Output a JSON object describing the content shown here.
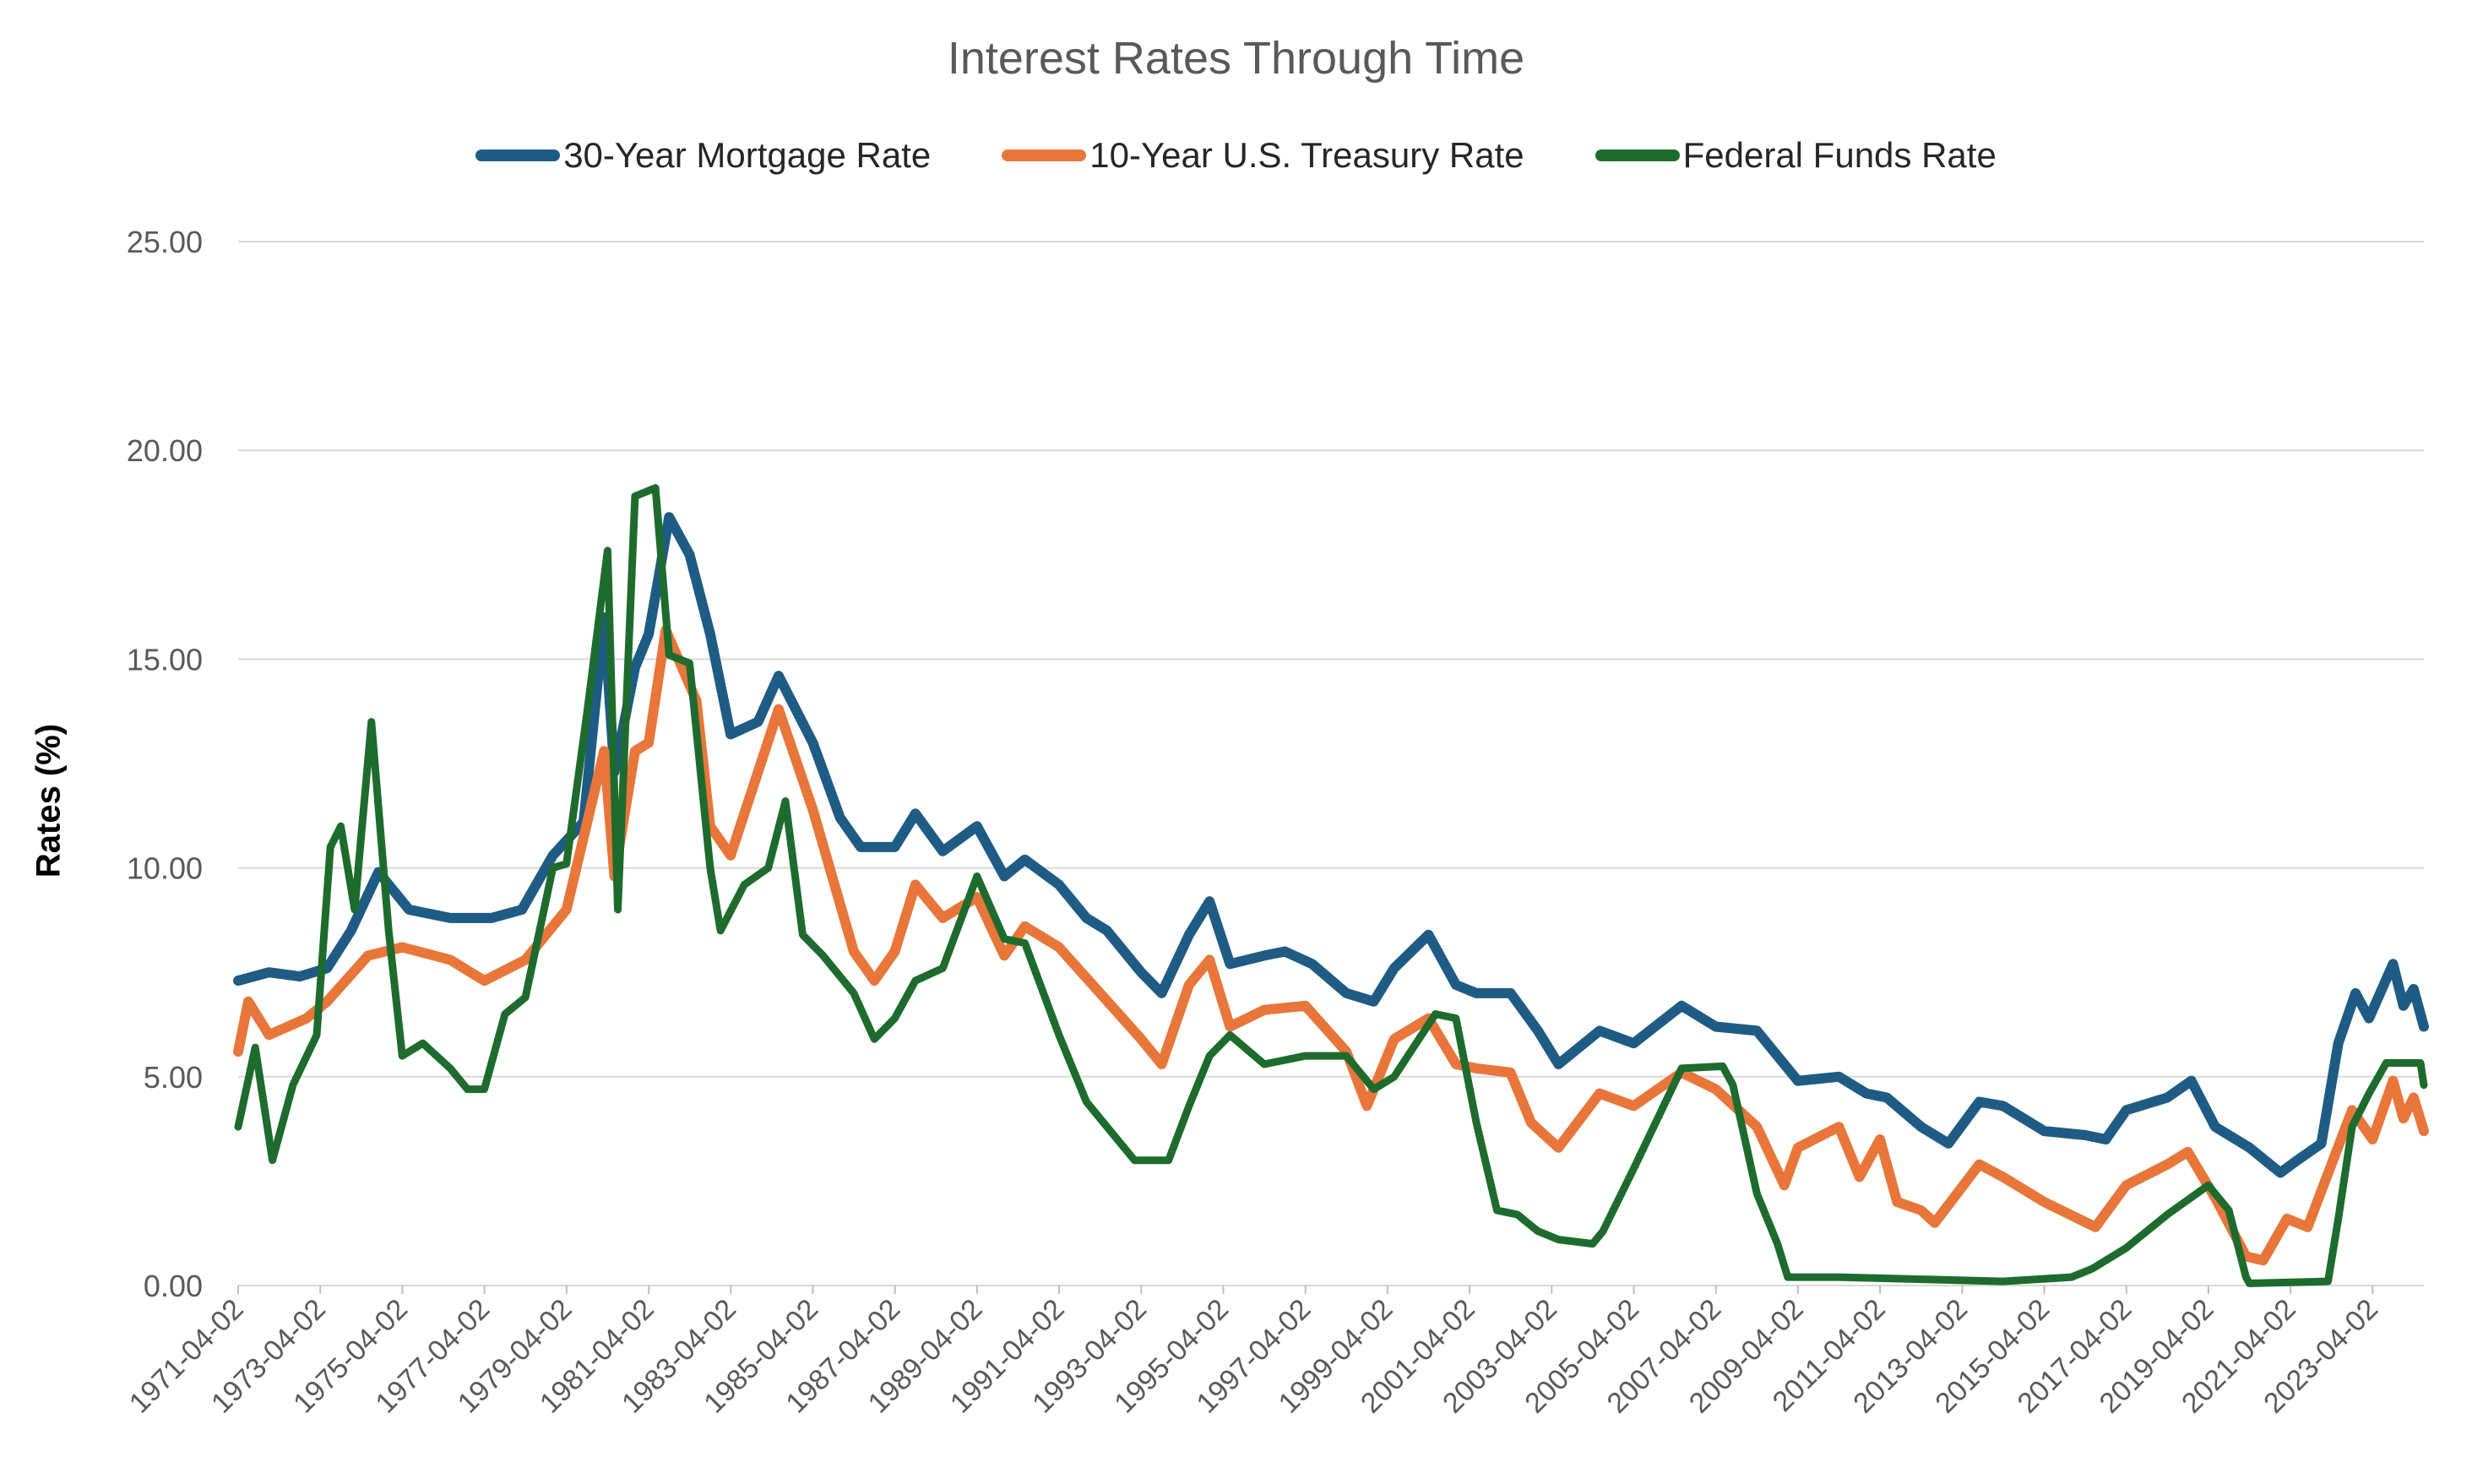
{
  "chart_data": {
    "type": "line",
    "title": "Interest Rates Through Time",
    "ylabel": "Rates (%)",
    "xlabel": "",
    "ylim": [
      0,
      25
    ],
    "x_range": [
      "1971-04-02",
      "2024-07-01"
    ],
    "yticks": [
      "0.00",
      "5.00",
      "10.00",
      "15.00",
      "20.00",
      "25.00"
    ],
    "xticks": [
      "1971-04-02",
      "1973-04-02",
      "1975-04-02",
      "1977-04-02",
      "1979-04-02",
      "1981-04-02",
      "1983-04-02",
      "1985-04-02",
      "1987-04-02",
      "1989-04-02",
      "1991-04-02",
      "1993-04-02",
      "1995-04-02",
      "1997-04-02",
      "1999-04-02",
      "2001-04-02",
      "2003-04-02",
      "2005-04-02",
      "2007-04-02",
      "2009-04-02",
      "2011-04-02",
      "2013-04-02",
      "2015-04-02",
      "2017-04-02",
      "2019-04-02",
      "2021-04-02",
      "2023-04-02"
    ],
    "grid": true,
    "legend_position": "top",
    "series": [
      {
        "name": "30-Year Mortgage Rate",
        "color": "#1F5C85",
        "points": [
          [
            "1971-04-02",
            7.3
          ],
          [
            "1972-01-01",
            7.5
          ],
          [
            "1972-10-01",
            7.4
          ],
          [
            "1973-06-01",
            7.6
          ],
          [
            "1974-01-01",
            8.5
          ],
          [
            "1974-09-01",
            9.9
          ],
          [
            "1975-06-01",
            9.0
          ],
          [
            "1976-06-01",
            8.8
          ],
          [
            "1977-06-01",
            8.8
          ],
          [
            "1978-03-01",
            9.0
          ],
          [
            "1978-12-01",
            10.3
          ],
          [
            "1979-09-01",
            11.1
          ],
          [
            "1980-03-01",
            16.0
          ],
          [
            "1980-06-01",
            12.3
          ],
          [
            "1980-12-01",
            14.8
          ],
          [
            "1981-04-02",
            15.6
          ],
          [
            "1981-10-01",
            18.4
          ],
          [
            "1982-04-01",
            17.5
          ],
          [
            "1982-10-01",
            15.6
          ],
          [
            "1983-04-01",
            13.2
          ],
          [
            "1983-12-01",
            13.5
          ],
          [
            "1984-06-01",
            14.6
          ],
          [
            "1985-04-01",
            13.0
          ],
          [
            "1985-12-01",
            11.2
          ],
          [
            "1986-06-01",
            10.5
          ],
          [
            "1987-04-01",
            10.5
          ],
          [
            "1987-10-01",
            11.3
          ],
          [
            "1988-06-01",
            10.4
          ],
          [
            "1989-04-01",
            11.0
          ],
          [
            "1989-12-01",
            9.8
          ],
          [
            "1990-06-01",
            10.2
          ],
          [
            "1991-04-01",
            9.6
          ],
          [
            "1991-12-01",
            8.8
          ],
          [
            "1992-06-01",
            8.5
          ],
          [
            "1993-04-01",
            7.5
          ],
          [
            "1993-10-01",
            7.0
          ],
          [
            "1994-06-01",
            8.4
          ],
          [
            "1994-12-01",
            9.2
          ],
          [
            "1995-06-01",
            7.7
          ],
          [
            "1996-04-01",
            7.9
          ],
          [
            "1996-10-01",
            8.0
          ],
          [
            "1997-06-01",
            7.7
          ],
          [
            "1998-04-01",
            7.0
          ],
          [
            "1998-12-01",
            6.8
          ],
          [
            "1999-06-01",
            7.6
          ],
          [
            "2000-04-01",
            8.4
          ],
          [
            "2000-12-01",
            7.2
          ],
          [
            "2001-06-01",
            7.0
          ],
          [
            "2002-04-01",
            7.0
          ],
          [
            "2002-12-01",
            6.1
          ],
          [
            "2003-06-01",
            5.3
          ],
          [
            "2004-06-01",
            6.1
          ],
          [
            "2005-04-01",
            5.8
          ],
          [
            "2006-06-01",
            6.7
          ],
          [
            "2007-04-01",
            6.2
          ],
          [
            "2008-04-01",
            6.1
          ],
          [
            "2009-04-01",
            4.9
          ],
          [
            "2010-04-01",
            5.0
          ],
          [
            "2010-12-01",
            4.6
          ],
          [
            "2011-06-01",
            4.5
          ],
          [
            "2012-04-01",
            3.8
          ],
          [
            "2012-12-01",
            3.4
          ],
          [
            "2013-09-01",
            4.4
          ],
          [
            "2014-04-01",
            4.3
          ],
          [
            "2015-04-01",
            3.7
          ],
          [
            "2016-04-01",
            3.6
          ],
          [
            "2016-10-01",
            3.5
          ],
          [
            "2017-04-01",
            4.2
          ],
          [
            "2018-04-01",
            4.5
          ],
          [
            "2018-11-01",
            4.9
          ],
          [
            "2019-06-01",
            3.8
          ],
          [
            "2020-04-01",
            3.3
          ],
          [
            "2021-01-01",
            2.7
          ],
          [
            "2021-06-01",
            3.0
          ],
          [
            "2022-01-01",
            3.4
          ],
          [
            "2022-06-01",
            5.8
          ],
          [
            "2022-11-01",
            7.0
          ],
          [
            "2023-03-01",
            6.4
          ],
          [
            "2023-10-01",
            7.7
          ],
          [
            "2024-01-01",
            6.7
          ],
          [
            "2024-04-01",
            7.1
          ],
          [
            "2024-07-01",
            6.2
          ]
        ]
      },
      {
        "name": "10-Year U.S. Treasury Rate",
        "color": "#E8763A",
        "points": [
          [
            "1971-04-02",
            5.6
          ],
          [
            "1971-07-01",
            6.8
          ],
          [
            "1972-01-01",
            6.0
          ],
          [
            "1972-12-01",
            6.4
          ],
          [
            "1973-06-01",
            6.8
          ],
          [
            "1974-06-01",
            7.9
          ],
          [
            "1975-04-01",
            8.1
          ],
          [
            "1976-06-01",
            7.8
          ],
          [
            "1977-04-01",
            7.3
          ],
          [
            "1978-04-01",
            7.8
          ],
          [
            "1979-04-01",
            9.0
          ],
          [
            "1980-03-01",
            12.8
          ],
          [
            "1980-06-01",
            9.8
          ],
          [
            "1980-12-01",
            12.8
          ],
          [
            "1981-04-02",
            13.0
          ],
          [
            "1981-09-01",
            15.7
          ],
          [
            "1982-06-01",
            14.0
          ],
          [
            "1982-10-01",
            11.0
          ],
          [
            "1983-04-01",
            10.3
          ],
          [
            "1984-06-01",
            13.8
          ],
          [
            "1985-04-01",
            11.4
          ],
          [
            "1986-04-01",
            8.0
          ],
          [
            "1986-10-01",
            7.3
          ],
          [
            "1987-04-01",
            8.0
          ],
          [
            "1987-10-01",
            9.6
          ],
          [
            "1988-06-01",
            8.8
          ],
          [
            "1989-04-01",
            9.3
          ],
          [
            "1989-12-01",
            7.9
          ],
          [
            "1990-06-01",
            8.6
          ],
          [
            "1991-04-01",
            8.1
          ],
          [
            "1992-04-01",
            7.0
          ],
          [
            "1993-04-01",
            5.9
          ],
          [
            "1993-10-01",
            5.3
          ],
          [
            "1994-06-01",
            7.2
          ],
          [
            "1994-12-01",
            7.8
          ],
          [
            "1995-06-01",
            6.2
          ],
          [
            "1996-04-01",
            6.6
          ],
          [
            "1997-04-01",
            6.7
          ],
          [
            "1998-04-01",
            5.6
          ],
          [
            "1998-10-01",
            4.3
          ],
          [
            "1999-06-01",
            5.9
          ],
          [
            "2000-04-01",
            6.4
          ],
          [
            "2000-12-01",
            5.3
          ],
          [
            "2001-06-01",
            5.2
          ],
          [
            "2002-04-01",
            5.1
          ],
          [
            "2002-10-01",
            3.9
          ],
          [
            "2003-06-01",
            3.3
          ],
          [
            "2004-06-01",
            4.6
          ],
          [
            "2005-04-01",
            4.3
          ],
          [
            "2006-06-01",
            5.1
          ],
          [
            "2007-04-01",
            4.7
          ],
          [
            "2008-04-01",
            3.8
          ],
          [
            "2008-12-01",
            2.4
          ],
          [
            "2009-04-01",
            3.3
          ],
          [
            "2010-04-01",
            3.8
          ],
          [
            "2010-10-01",
            2.6
          ],
          [
            "2011-04-01",
            3.5
          ],
          [
            "2011-09-01",
            2.0
          ],
          [
            "2012-04-01",
            1.8
          ],
          [
            "2012-08-01",
            1.5
          ],
          [
            "2013-09-01",
            2.9
          ],
          [
            "2014-04-01",
            2.6
          ],
          [
            "2015-04-01",
            2.0
          ],
          [
            "2016-07-01",
            1.4
          ],
          [
            "2017-04-01",
            2.4
          ],
          [
            "2018-04-01",
            2.9
          ],
          [
            "2018-10-01",
            3.2
          ],
          [
            "2019-06-01",
            2.1
          ],
          [
            "2020-03-01",
            0.7
          ],
          [
            "2020-08-01",
            0.6
          ],
          [
            "2021-03-01",
            1.6
          ],
          [
            "2021-09-01",
            1.4
          ],
          [
            "2022-04-01",
            2.9
          ],
          [
            "2022-10-01",
            4.2
          ],
          [
            "2023-04-01",
            3.5
          ],
          [
            "2023-10-01",
            4.9
          ],
          [
            "2024-01-01",
            4.0
          ],
          [
            "2024-04-01",
            4.5
          ],
          [
            "2024-07-01",
            3.7
          ]
        ]
      },
      {
        "name": "Federal Funds Rate",
        "color": "#1E6B2E",
        "points": [
          [
            "1971-04-02",
            3.8
          ],
          [
            "1971-09-01",
            5.7
          ],
          [
            "1972-02-01",
            3.0
          ],
          [
            "1972-08-01",
            4.8
          ],
          [
            "1973-03-01",
            6.0
          ],
          [
            "1973-07-01",
            10.5
          ],
          [
            "1973-10-01",
            11.0
          ],
          [
            "1974-02-01",
            9.0
          ],
          [
            "1974-07-01",
            13.5
          ],
          [
            "1974-12-01",
            8.5
          ],
          [
            "1975-04-01",
            5.5
          ],
          [
            "1975-10-01",
            5.8
          ],
          [
            "1976-06-01",
            5.2
          ],
          [
            "1976-11-01",
            4.7
          ],
          [
            "1977-04-01",
            4.7
          ],
          [
            "1977-10-01",
            6.5
          ],
          [
            "1978-04-01",
            6.9
          ],
          [
            "1978-12-01",
            10.0
          ],
          [
            "1979-04-01",
            10.1
          ],
          [
            "1979-10-01",
            13.7
          ],
          [
            "1980-04-01",
            17.6
          ],
          [
            "1980-07-01",
            9.0
          ],
          [
            "1980-12-01",
            18.9
          ],
          [
            "1981-06-01",
            19.1
          ],
          [
            "1981-10-01",
            15.1
          ],
          [
            "1982-04-01",
            14.9
          ],
          [
            "1982-10-01",
            10.0
          ],
          [
            "1983-01-01",
            8.5
          ],
          [
            "1983-08-01",
            9.6
          ],
          [
            "1984-03-01",
            10.0
          ],
          [
            "1984-08-01",
            11.6
          ],
          [
            "1985-01-01",
            8.4
          ],
          [
            "1985-07-01",
            7.9
          ],
          [
            "1986-04-01",
            7.0
          ],
          [
            "1986-10-01",
            5.9
          ],
          [
            "1987-04-01",
            6.4
          ],
          [
            "1987-10-01",
            7.3
          ],
          [
            "1988-06-01",
            7.6
          ],
          [
            "1989-04-01",
            9.8
          ],
          [
            "1989-12-01",
            8.3
          ],
          [
            "1990-06-01",
            8.2
          ],
          [
            "1991-04-01",
            6.0
          ],
          [
            "1991-12-01",
            4.4
          ],
          [
            "1992-06-01",
            3.8
          ],
          [
            "1993-02-01",
            3.0
          ],
          [
            "1993-12-01",
            3.0
          ],
          [
            "1994-06-01",
            4.3
          ],
          [
            "1994-12-01",
            5.5
          ],
          [
            "1995-06-01",
            6.0
          ],
          [
            "1996-04-01",
            5.3
          ],
          [
            "1997-04-01",
            5.5
          ],
          [
            "1998-04-01",
            5.5
          ],
          [
            "1998-12-01",
            4.7
          ],
          [
            "1999-06-01",
            5.0
          ],
          [
            "2000-06-01",
            6.5
          ],
          [
            "2000-12-01",
            6.4
          ],
          [
            "2001-06-01",
            3.9
          ],
          [
            "2001-12-01",
            1.8
          ],
          [
            "2002-06-01",
            1.7
          ],
          [
            "2002-12-01",
            1.3
          ],
          [
            "2003-06-01",
            1.1
          ],
          [
            "2004-04-01",
            1.0
          ],
          [
            "2004-07-01",
            1.3
          ],
          [
            "2005-04-01",
            2.8
          ],
          [
            "2006-06-01",
            5.2
          ],
          [
            "2007-06-01",
            5.25
          ],
          [
            "2007-09-01",
            4.8
          ],
          [
            "2008-04-01",
            2.2
          ],
          [
            "2008-10-01",
            1.0
          ],
          [
            "2009-01-01",
            0.2
          ],
          [
            "2010-04-01",
            0.2
          ],
          [
            "2012-04-01",
            0.15
          ],
          [
            "2014-04-01",
            0.1
          ],
          [
            "2015-12-01",
            0.2
          ],
          [
            "2016-06-01",
            0.4
          ],
          [
            "2017-04-01",
            0.9
          ],
          [
            "2018-04-01",
            1.7
          ],
          [
            "2019-04-01",
            2.4
          ],
          [
            "2019-10-01",
            1.8
          ],
          [
            "2020-03-01",
            0.2
          ],
          [
            "2020-04-01",
            0.05
          ],
          [
            "2022-03-01",
            0.1
          ],
          [
            "2022-06-01",
            1.6
          ],
          [
            "2022-10-01",
            3.8
          ],
          [
            "2023-03-01",
            4.6
          ],
          [
            "2023-08-01",
            5.33
          ],
          [
            "2024-06-01",
            5.33
          ],
          [
            "2024-07-01",
            4.8
          ]
        ]
      }
    ]
  }
}
